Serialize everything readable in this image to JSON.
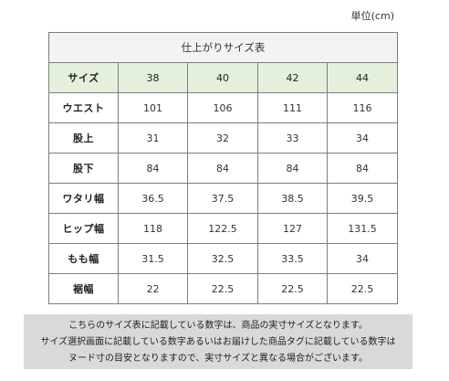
{
  "unit_label": "単位(cm)",
  "table": {
    "title": "仕上がりサイズ表",
    "header_label": "サイズ",
    "sizes": [
      "38",
      "40",
      "42",
      "44"
    ],
    "rows": [
      {
        "label": "ウエスト",
        "values": [
          "101",
          "106",
          "111",
          "116"
        ]
      },
      {
        "label": "股上",
        "values": [
          "31",
          "32",
          "33",
          "34"
        ]
      },
      {
        "label": "股下",
        "values": [
          "84",
          "84",
          "84",
          "84"
        ]
      },
      {
        "label": "ワタリ幅",
        "values": [
          "36.5",
          "37.5",
          "38.5",
          "39.5"
        ]
      },
      {
        "label": "ヒップ幅",
        "values": [
          "118",
          "122.5",
          "127",
          "131.5"
        ]
      },
      {
        "label": "もも幅",
        "values": [
          "31.5",
          "32.5",
          "33.5",
          "34"
        ]
      },
      {
        "label": "裾幅",
        "values": [
          "22",
          "22.5",
          "22.5",
          "22.5"
        ]
      }
    ]
  },
  "note": {
    "lines": [
      "こちらのサイズ表に記載している数字は、商品の実寸サイズとなります。",
      "サイズ選択画面に記載している数字あるいはお届けした商品タグに記載している数字は",
      "ヌード寸の目安となりますので、実寸サイズと異なる場合がございます。"
    ]
  }
}
